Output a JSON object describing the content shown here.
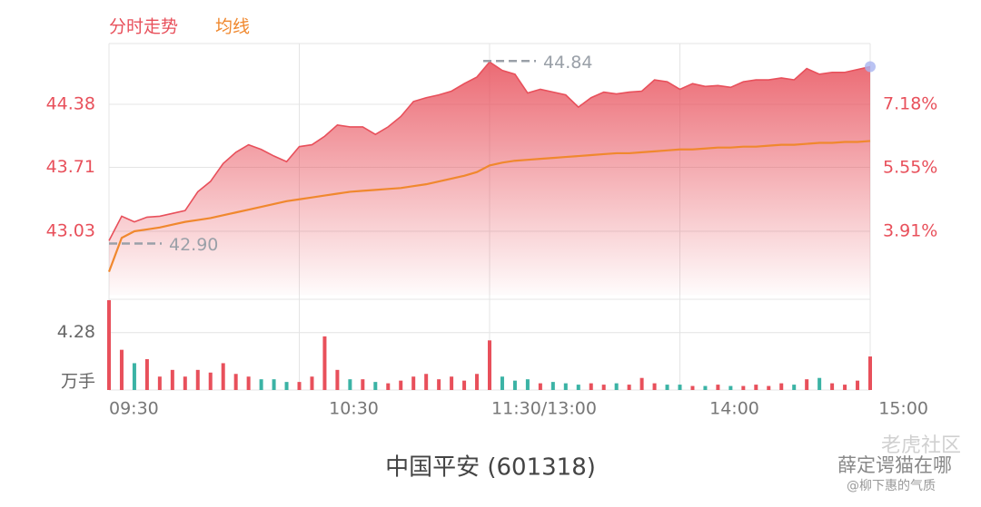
{
  "title": "中国平安 (601318)",
  "watermark": [
    "老虎社区",
    "薛定谔猫在哪",
    "@柳下惠的气质"
  ],
  "chart_data": [
    {
      "type": "line",
      "x": [
        0,
        4,
        8,
        12,
        16,
        20,
        24,
        28,
        32,
        36,
        40,
        44,
        48,
        52,
        56,
        60,
        64,
        68,
        72,
        76,
        80,
        84,
        88,
        92,
        96,
        100,
        104,
        108,
        112,
        116,
        120,
        124,
        128,
        132,
        136,
        140,
        144,
        148,
        152,
        156,
        160,
        164,
        168,
        172,
        176,
        180,
        184,
        188,
        192,
        196,
        200,
        204,
        208,
        212,
        216,
        220,
        224,
        228,
        232,
        236,
        240
      ],
      "series": [
        {
          "name": "分时走势",
          "color": "#e8505b",
          "values": [
            42.93,
            43.19,
            43.13,
            43.18,
            43.19,
            43.22,
            43.25,
            43.45,
            43.56,
            43.75,
            43.87,
            43.95,
            43.9,
            43.83,
            43.77,
            43.93,
            43.95,
            44.04,
            44.16,
            44.14,
            44.14,
            44.06,
            44.14,
            44.25,
            44.41,
            44.45,
            44.48,
            44.52,
            44.6,
            44.67,
            44.83,
            44.74,
            44.7,
            44.5,
            44.54,
            44.51,
            44.48,
            44.35,
            44.45,
            44.51,
            44.49,
            44.51,
            44.52,
            44.64,
            44.62,
            44.54,
            44.6,
            44.57,
            44.58,
            44.56,
            44.62,
            44.64,
            44.64,
            44.66,
            44.64,
            44.76,
            44.7,
            44.72,
            44.72,
            44.75,
            44.78
          ]
        },
        {
          "name": "均线",
          "color": "#f0882e",
          "values": [
            42.6,
            42.96,
            43.03,
            43.05,
            43.07,
            43.1,
            43.13,
            43.15,
            43.17,
            43.2,
            43.23,
            43.26,
            43.29,
            43.32,
            43.35,
            43.37,
            43.39,
            43.41,
            43.43,
            43.45,
            43.46,
            43.47,
            43.48,
            43.49,
            43.51,
            43.53,
            43.56,
            43.59,
            43.62,
            43.66,
            43.73,
            43.76,
            43.78,
            43.79,
            43.8,
            43.81,
            43.82,
            43.83,
            43.84,
            43.85,
            43.86,
            43.86,
            43.87,
            43.88,
            43.89,
            43.9,
            43.9,
            43.91,
            43.92,
            43.92,
            43.93,
            43.93,
            43.94,
            43.95,
            43.95,
            43.96,
            43.97,
            43.97,
            43.98,
            43.98,
            43.99
          ]
        }
      ],
      "xlim": [
        0,
        240
      ],
      "xticks": [
        {
          "value": 0,
          "label": "09:30"
        },
        {
          "value": 60,
          "label": "10:30"
        },
        {
          "value": 120,
          "label": "11:30/13:00"
        },
        {
          "value": 180,
          "label": "14:00"
        },
        {
          "value": 240,
          "label": "15:00"
        }
      ],
      "ylim": [
        42.35,
        45.06
      ],
      "yticks": [
        44.38,
        43.71,
        43.03
      ],
      "y2lim": [
        2.26,
        8.83
      ],
      "y2ticks": [
        {
          "value": 7.18,
          "label": "7.18%"
        },
        {
          "value": 5.55,
          "label": "5.55%"
        },
        {
          "value": 3.91,
          "label": "3.91%"
        }
      ],
      "annotations": [
        {
          "x": 118,
          "y": 44.84,
          "label": "44.84"
        },
        {
          "x": 0,
          "y": 42.9,
          "label": "42.90"
        }
      ],
      "grid": true
    },
    {
      "type": "bar",
      "ylabel": "万手",
      "up_color": "#e8505b",
      "down_color": "#3bb3a5",
      "values": [
        6.7,
        3.0,
        2.0,
        2.3,
        1.0,
        1.5,
        1.0,
        1.5,
        1.3,
        2.0,
        1.2,
        1.0,
        0.8,
        0.8,
        0.6,
        0.6,
        1.0,
        4.0,
        1.5,
        0.8,
        0.8,
        0.6,
        0.5,
        0.7,
        1.0,
        1.2,
        0.8,
        1.0,
        0.7,
        1.2,
        3.7,
        1.0,
        0.7,
        0.8,
        0.5,
        0.6,
        0.5,
        0.4,
        0.5,
        0.4,
        0.5,
        0.4,
        0.9,
        0.5,
        0.4,
        0.4,
        0.3,
        0.3,
        0.4,
        0.3,
        0.3,
        0.4,
        0.3,
        0.5,
        0.4,
        0.8,
        0.9,
        0.5,
        0.4,
        0.7,
        2.5
      ],
      "ylim": [
        0,
        6.9
      ],
      "yticks": [
        4.28
      ]
    }
  ]
}
